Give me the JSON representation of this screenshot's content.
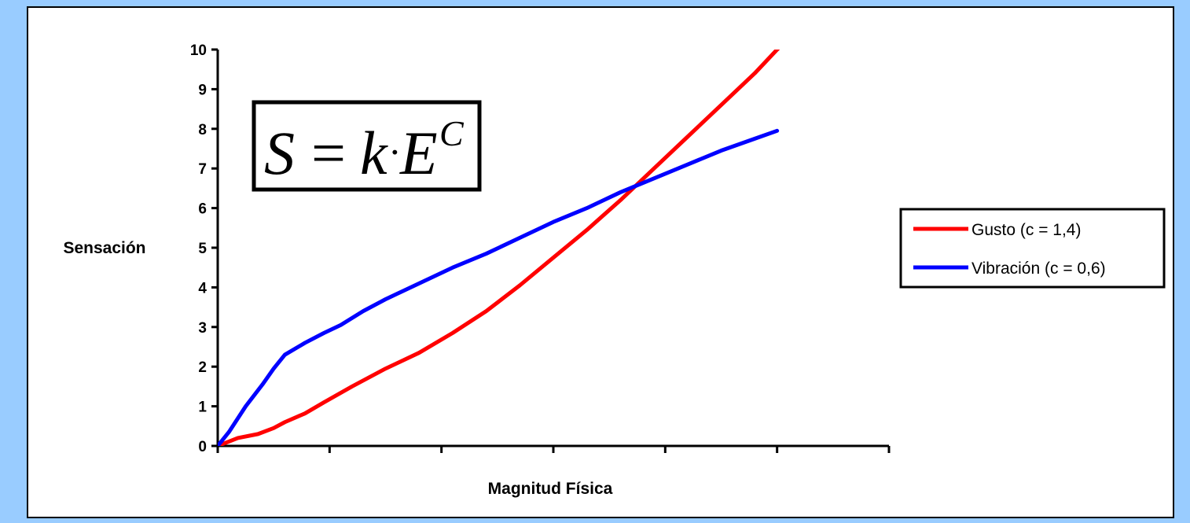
{
  "chart_data": {
    "type": "line",
    "title": "",
    "xlabel": "Magnitud Física",
    "ylabel": "Sensación",
    "x_tick_labels": false,
    "xlim": [
      0,
      6
    ],
    "ylim": [
      0,
      10
    ],
    "y_ticks": [
      "0",
      "1",
      "2",
      "3",
      "4",
      "5",
      "6",
      "7",
      "8",
      "9",
      "10"
    ],
    "grid": false,
    "legend_position": "right",
    "annotation": {
      "formula": {
        "S": "S",
        "equals": "=",
        "k": "k",
        "dot": "·",
        "E": "E",
        "exponent": "C"
      }
    },
    "series": [
      {
        "name": "Gusto (c = 1,4)",
        "color": "#ff0000",
        "x": [
          0,
          0.18,
          0.36,
          0.5,
          0.6,
          0.78,
          0.95,
          1.2,
          1.5,
          1.8,
          2.1,
          2.4,
          2.7,
          3.0,
          3.3,
          3.6,
          3.9,
          4.2,
          4.5,
          4.8,
          5.0,
          5.3
        ],
        "y": [
          0,
          0.2,
          0.3,
          0.45,
          0.6,
          0.82,
          1.1,
          1.5,
          1.95,
          2.35,
          2.85,
          3.4,
          4.05,
          4.75,
          5.45,
          6.2,
          7.0,
          7.8,
          8.6,
          9.4,
          10.0,
          10.8
        ]
      },
      {
        "name": "Vibración (c = 0,6)",
        "color": "#0000ff",
        "x": [
          0,
          0.1,
          0.25,
          0.4,
          0.5,
          0.6,
          0.78,
          0.95,
          1.1,
          1.3,
          1.5,
          1.8,
          2.1,
          2.4,
          2.7,
          3.0,
          3.3,
          3.6,
          3.9,
          4.2,
          4.5,
          4.8,
          5.0
        ],
        "y": [
          0,
          0.35,
          1.0,
          1.55,
          1.95,
          2.3,
          2.6,
          2.85,
          3.05,
          3.4,
          3.7,
          4.1,
          4.5,
          4.85,
          5.25,
          5.65,
          6.0,
          6.4,
          6.75,
          7.1,
          7.45,
          7.75,
          7.95
        ]
      }
    ]
  }
}
